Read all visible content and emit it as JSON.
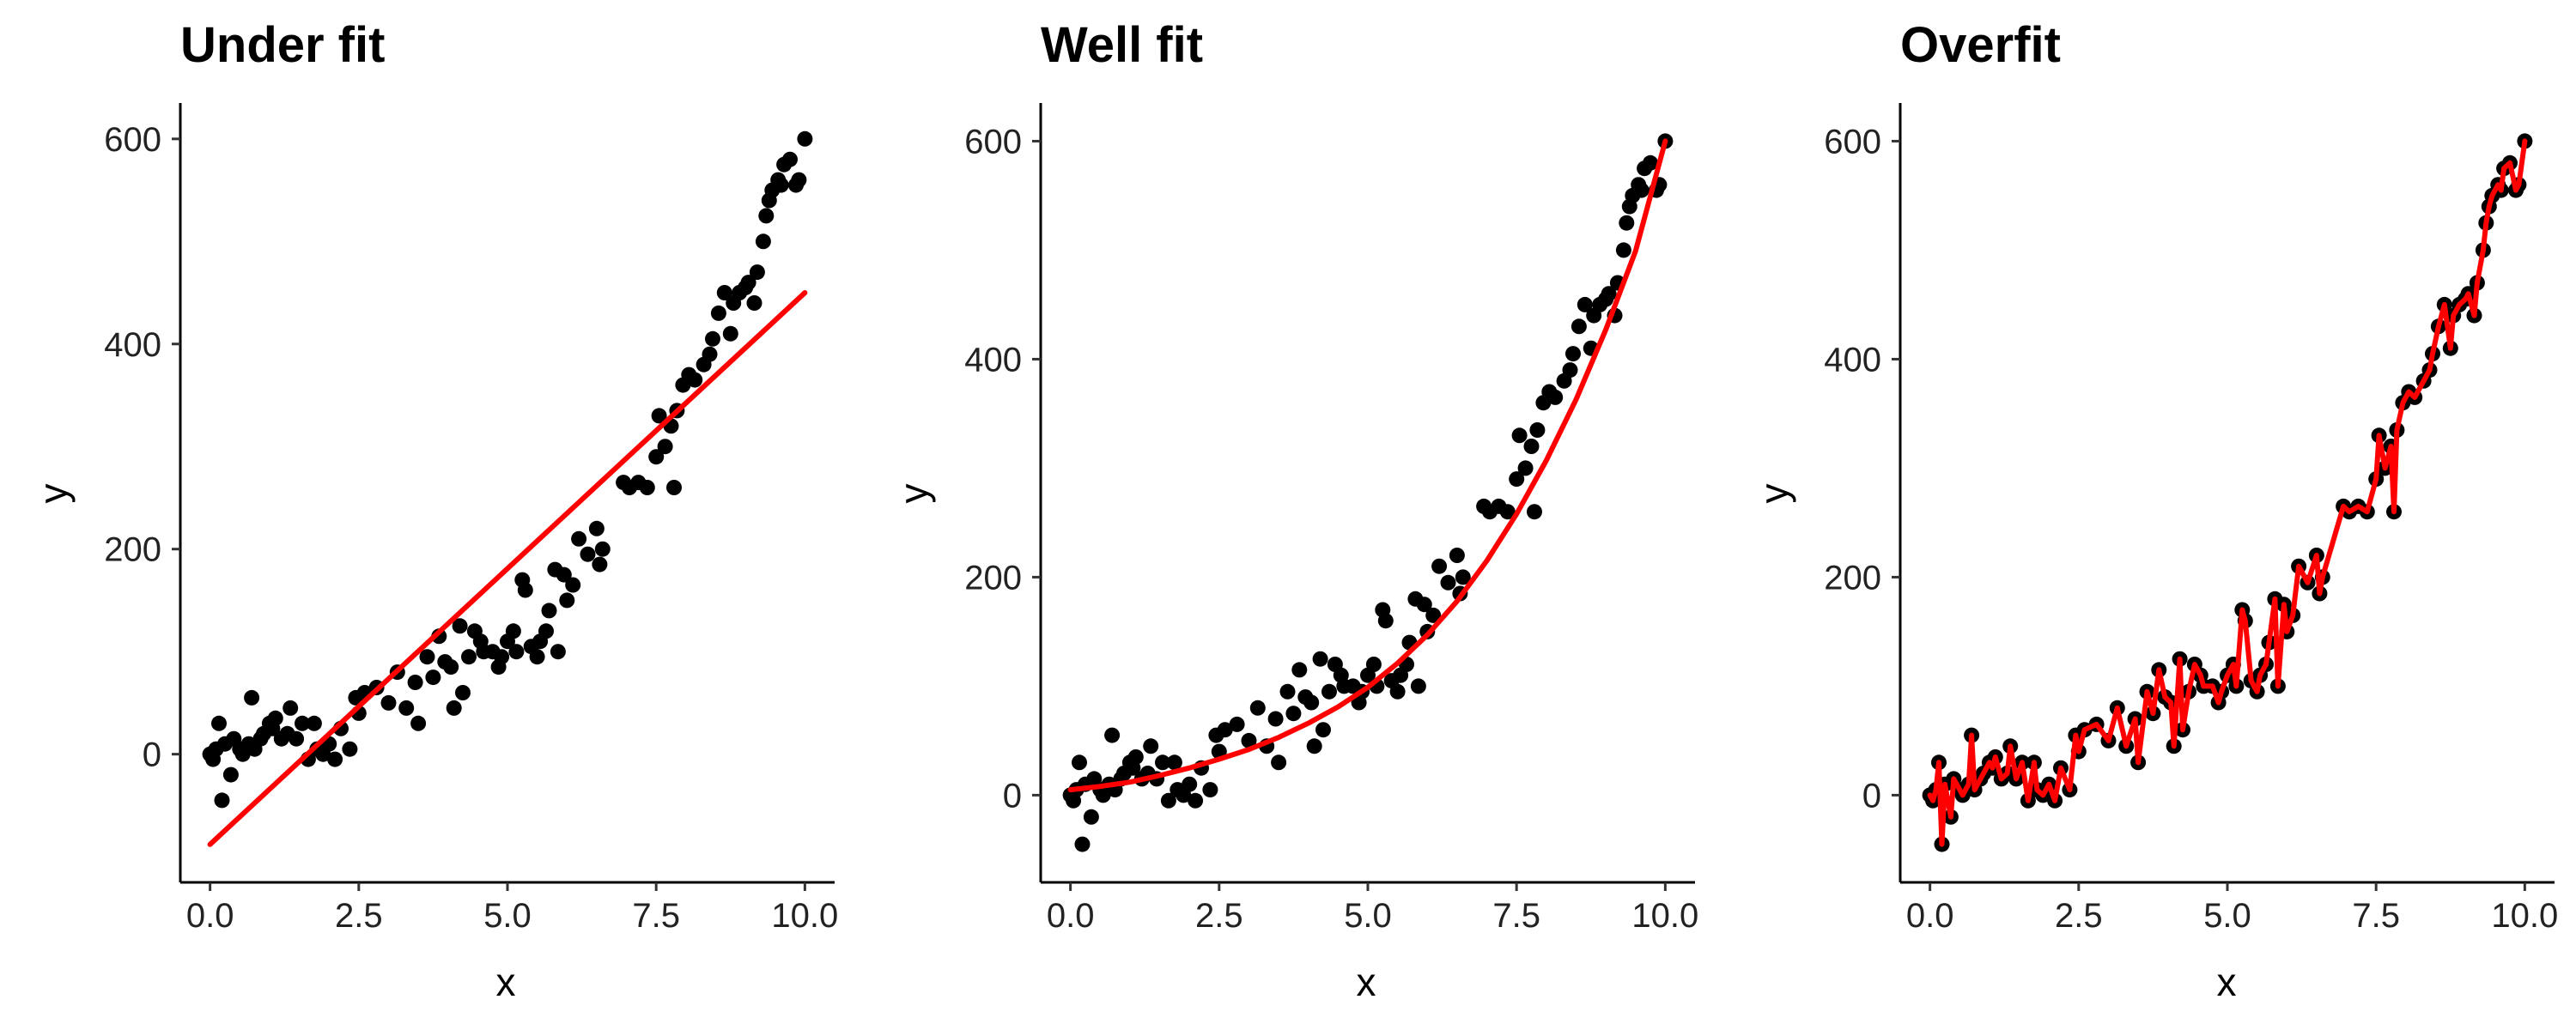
{
  "colors": {
    "points": "#000000",
    "fit": "#ff0000",
    "background": "#ffffff"
  },
  "chart_data": [
    {
      "type": "scatter",
      "title": "Under fit",
      "xlabel": "x",
      "ylabel": "y",
      "xlim": [
        -0.5,
        10.5
      ],
      "ylim": [
        -125,
        635
      ],
      "xticks": [
        0,
        2.5,
        5,
        7.5,
        10
      ],
      "xtick_labels": [
        "0.0",
        "2.5",
        "5.0",
        "7.5",
        "10.0"
      ],
      "yticks": [
        0,
        200,
        400,
        600
      ],
      "ytick_labels": [
        "0",
        "200",
        "400",
        "600"
      ],
      "grid": false,
      "legend": "none",
      "fit": {
        "kind": "linear",
        "x": [
          0,
          10
        ],
        "y": [
          -88,
          450
        ]
      },
      "points": {
        "x": [
          0.0,
          0.05,
          0.1,
          0.15,
          0.2,
          0.25,
          0.35,
          0.4,
          0.5,
          0.55,
          0.65,
          0.7,
          0.75,
          0.85,
          0.9,
          1.0,
          1.05,
          1.1,
          1.2,
          1.3,
          1.35,
          1.45,
          1.55,
          1.65,
          1.75,
          1.8,
          1.9,
          2.0,
          2.1,
          2.2,
          2.35,
          2.45,
          2.5,
          2.6,
          2.8,
          3.0,
          3.15,
          3.3,
          3.45,
          3.5,
          3.65,
          3.75,
          3.85,
          3.95,
          4.05,
          4.1,
          4.2,
          4.25,
          4.35,
          4.45,
          4.55,
          4.6,
          4.75,
          4.85,
          4.9,
          5.0,
          5.1,
          5.15,
          5.25,
          5.3,
          5.4,
          5.5,
          5.55,
          5.65,
          5.7,
          5.8,
          5.85,
          5.95,
          6.0,
          6.1,
          6.2,
          6.35,
          6.5,
          6.55,
          6.6,
          6.95,
          7.05,
          7.2,
          7.35,
          7.5,
          7.55,
          7.65,
          7.75,
          7.8,
          7.85,
          7.95,
          8.05,
          8.15,
          8.3,
          8.4,
          8.45,
          8.55,
          8.65,
          8.75,
          8.8,
          8.9,
          9.0,
          9.05,
          9.15,
          9.2,
          9.3,
          9.35,
          9.4,
          9.45,
          9.55,
          9.6,
          9.65,
          9.75,
          9.85,
          9.9,
          10.0
        ],
        "y": [
          0,
          -5,
          5,
          30,
          -45,
          10,
          -20,
          15,
          5,
          0,
          10,
          55,
          5,
          15,
          20,
          30,
          25,
          35,
          15,
          20,
          45,
          15,
          30,
          -5,
          30,
          5,
          0,
          10,
          -5,
          25,
          5,
          55,
          40,
          60,
          65,
          50,
          80,
          45,
          70,
          30,
          95,
          75,
          115,
          90,
          85,
          45,
          125,
          60,
          95,
          120,
          110,
          100,
          100,
          85,
          95,
          110,
          120,
          100,
          170,
          160,
          105,
          95,
          110,
          120,
          140,
          180,
          100,
          175,
          150,
          165,
          210,
          195,
          220,
          185,
          200,
          265,
          260,
          265,
          260,
          290,
          330,
          300,
          320,
          260,
          335,
          360,
          370,
          365,
          380,
          390,
          405,
          430,
          450,
          410,
          440,
          450,
          455,
          460,
          440,
          470,
          500,
          525,
          540,
          550,
          560,
          555,
          575,
          580,
          555,
          560,
          600
        ]
      }
    },
    {
      "type": "scatter",
      "title": "Well fit",
      "xlabel": "x",
      "ylabel": "y",
      "xlim": [
        -0.5,
        10.5
      ],
      "ylim": [
        -80,
        635
      ],
      "xticks": [
        0,
        2.5,
        5,
        7.5,
        10
      ],
      "xtick_labels": [
        "0.0",
        "2.5",
        "5.0",
        "7.5",
        "10.0"
      ],
      "yticks": [
        0,
        200,
        400,
        600
      ],
      "ytick_labels": [
        "0",
        "200",
        "400",
        "600"
      ],
      "grid": false,
      "legend": "none",
      "fit": {
        "kind": "curve",
        "x": [
          0,
          0.5,
          1,
          1.5,
          2,
          2.5,
          3,
          3.5,
          4,
          4.5,
          5,
          5.5,
          6,
          6.5,
          7,
          7.5,
          8,
          8.5,
          9,
          9.5,
          10
        ],
        "y": [
          5,
          8,
          12,
          18,
          25,
          33,
          42,
          53,
          66,
          81,
          99,
          121,
          147,
          178,
          215,
          258,
          307,
          363,
          427,
          499,
          600
        ]
      },
      "points": {
        "x": [
          0.0,
          0.05,
          0.1,
          0.15,
          0.2,
          0.25,
          0.35,
          0.4,
          0.5,
          0.55,
          0.65,
          0.7,
          0.75,
          0.85,
          0.9,
          1.0,
          1.05,
          1.1,
          1.2,
          1.3,
          1.35,
          1.45,
          1.55,
          1.65,
          1.75,
          1.8,
          1.9,
          2.0,
          2.1,
          2.2,
          2.35,
          2.45,
          2.5,
          2.6,
          2.8,
          3.0,
          3.15,
          3.3,
          3.45,
          3.5,
          3.65,
          3.75,
          3.85,
          3.95,
          4.05,
          4.1,
          4.2,
          4.25,
          4.35,
          4.45,
          4.55,
          4.6,
          4.75,
          4.85,
          4.9,
          5.0,
          5.1,
          5.15,
          5.25,
          5.3,
          5.4,
          5.5,
          5.55,
          5.65,
          5.7,
          5.8,
          5.85,
          5.95,
          6.0,
          6.1,
          6.2,
          6.35,
          6.5,
          6.55,
          6.6,
          6.95,
          7.05,
          7.2,
          7.35,
          7.5,
          7.55,
          7.65,
          7.75,
          7.8,
          7.85,
          7.95,
          8.05,
          8.15,
          8.3,
          8.4,
          8.45,
          8.55,
          8.65,
          8.75,
          8.8,
          8.9,
          9.0,
          9.05,
          9.15,
          9.2,
          9.3,
          9.35,
          9.4,
          9.45,
          9.55,
          9.6,
          9.65,
          9.75,
          9.85,
          9.9,
          10.0
        ],
        "y": [
          0,
          -5,
          5,
          30,
          -45,
          10,
          -20,
          15,
          5,
          0,
          10,
          55,
          5,
          15,
          20,
          30,
          25,
          35,
          15,
          20,
          45,
          15,
          30,
          -5,
          30,
          5,
          0,
          10,
          -5,
          25,
          5,
          55,
          40,
          60,
          65,
          50,
          80,
          45,
          70,
          30,
          95,
          75,
          115,
          90,
          85,
          45,
          125,
          60,
          95,
          120,
          110,
          100,
          100,
          85,
          95,
          110,
          120,
          100,
          170,
          160,
          105,
          95,
          110,
          120,
          140,
          180,
          100,
          175,
          150,
          165,
          210,
          195,
          220,
          185,
          200,
          265,
          260,
          265,
          260,
          290,
          330,
          300,
          320,
          260,
          335,
          360,
          370,
          365,
          380,
          390,
          405,
          430,
          450,
          410,
          440,
          450,
          455,
          460,
          440,
          470,
          500,
          525,
          540,
          550,
          560,
          555,
          575,
          580,
          555,
          560,
          600
        ]
      }
    },
    {
      "type": "scatter",
      "title": "Overfit",
      "xlabel": "x",
      "ylabel": "y",
      "xlim": [
        -0.5,
        10.5
      ],
      "ylim": [
        -80,
        635
      ],
      "xticks": [
        0,
        2.5,
        5,
        7.5,
        10
      ],
      "xtick_labels": [
        "0.0",
        "2.5",
        "5.0",
        "7.5",
        "10.0"
      ],
      "yticks": [
        0,
        200,
        400,
        600
      ],
      "ytick_labels": [
        "0",
        "200",
        "400",
        "600"
      ],
      "grid": false,
      "legend": "none",
      "fit": {
        "kind": "interpolating",
        "through": "points"
      },
      "points": {
        "x": [
          0.0,
          0.05,
          0.1,
          0.15,
          0.2,
          0.25,
          0.35,
          0.4,
          0.5,
          0.55,
          0.65,
          0.7,
          0.75,
          0.85,
          0.9,
          1.0,
          1.05,
          1.1,
          1.2,
          1.3,
          1.35,
          1.45,
          1.55,
          1.65,
          1.75,
          1.8,
          1.9,
          2.0,
          2.1,
          2.2,
          2.35,
          2.45,
          2.5,
          2.6,
          2.8,
          3.0,
          3.15,
          3.3,
          3.45,
          3.5,
          3.65,
          3.75,
          3.85,
          3.95,
          4.05,
          4.1,
          4.2,
          4.25,
          4.35,
          4.45,
          4.55,
          4.6,
          4.75,
          4.85,
          4.9,
          5.0,
          5.1,
          5.15,
          5.25,
          5.3,
          5.4,
          5.5,
          5.55,
          5.65,
          5.7,
          5.8,
          5.85,
          5.95,
          6.0,
          6.1,
          6.2,
          6.35,
          6.5,
          6.55,
          6.6,
          6.95,
          7.05,
          7.2,
          7.35,
          7.5,
          7.55,
          7.65,
          7.75,
          7.8,
          7.85,
          7.95,
          8.05,
          8.15,
          8.3,
          8.4,
          8.45,
          8.55,
          8.65,
          8.75,
          8.8,
          8.9,
          9.0,
          9.05,
          9.15,
          9.2,
          9.3,
          9.35,
          9.4,
          9.45,
          9.55,
          9.6,
          9.65,
          9.75,
          9.85,
          9.9,
          10.0
        ],
        "y": [
          0,
          -5,
          5,
          30,
          -45,
          10,
          -20,
          15,
          5,
          0,
          10,
          55,
          5,
          15,
          20,
          30,
          25,
          35,
          15,
          20,
          45,
          15,
          30,
          -5,
          30,
          5,
          0,
          10,
          -5,
          25,
          5,
          55,
          40,
          60,
          65,
          50,
          80,
          45,
          70,
          30,
          95,
          75,
          115,
          90,
          85,
          45,
          125,
          60,
          95,
          120,
          110,
          100,
          100,
          85,
          95,
          110,
          120,
          100,
          170,
          160,
          105,
          95,
          110,
          120,
          140,
          180,
          100,
          175,
          150,
          165,
          210,
          195,
          220,
          185,
          200,
          265,
          260,
          265,
          260,
          290,
          330,
          300,
          320,
          260,
          335,
          360,
          370,
          365,
          380,
          390,
          405,
          430,
          450,
          410,
          440,
          450,
          455,
          460,
          440,
          470,
          500,
          525,
          540,
          550,
          560,
          555,
          575,
          580,
          555,
          560,
          600
        ]
      }
    }
  ]
}
